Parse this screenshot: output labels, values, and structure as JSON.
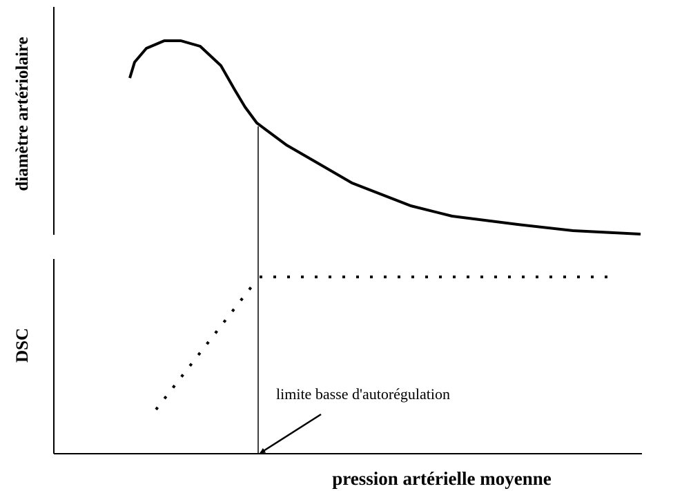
{
  "axes": {
    "y_top_label": "diamètre artériolaire",
    "y_bottom_label": "DSC",
    "x_label": "pression artérielle moyenne"
  },
  "annotation": "limite basse d'autorégulation"
}
